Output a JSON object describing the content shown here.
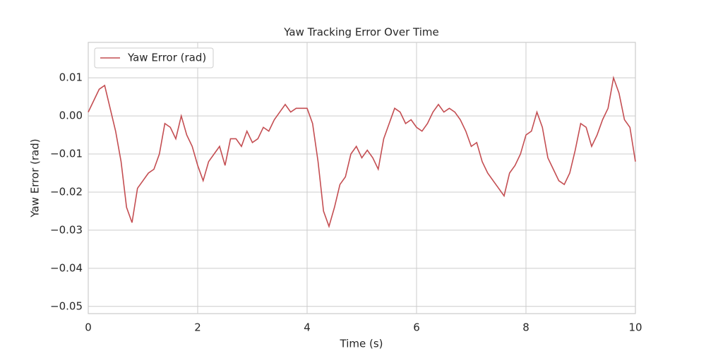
{
  "chart_data": {
    "type": "line",
    "title": "Yaw Tracking Error Over Time",
    "x_label": "Time (s)",
    "y_label": "Yaw Error (rad)",
    "x": [
      0,
      0.1,
      0.2,
      0.3,
      0.4,
      0.5,
      0.6,
      0.7,
      0.8,
      0.9,
      1,
      1.1,
      1.2,
      1.3,
      1.4,
      1.5,
      1.6,
      1.7,
      1.8,
      1.9,
      2,
      2.1,
      2.2,
      2.3,
      2.4,
      2.5,
      2.6,
      2.7,
      2.8,
      2.9,
      3,
      3.1,
      3.2,
      3.3,
      3.4,
      3.5,
      3.6,
      3.7,
      3.8,
      3.9,
      4,
      4.1,
      4.2,
      4.3,
      4.4,
      4.5,
      4.6,
      4.7,
      4.8,
      4.9,
      5,
      5.1,
      5.2,
      5.3,
      5.4,
      5.5,
      5.6,
      5.7,
      5.8,
      5.9,
      6,
      6.1,
      6.2,
      6.3,
      6.4,
      6.5,
      6.6,
      6.7,
      6.8,
      6.9,
      7,
      7.1,
      7.2,
      7.3,
      7.4,
      7.5,
      7.6,
      7.7,
      7.8,
      7.9,
      8,
      8.1,
      8.2,
      8.3,
      8.4,
      8.5,
      8.6,
      8.7,
      8.8,
      8.9,
      9,
      9.1,
      9.2,
      9.3,
      9.4,
      9.5,
      9.6,
      9.7,
      9.8,
      9.9,
      10
    ],
    "series": [
      {
        "name": "Yaw Error (rad)",
        "color": "#c44e52",
        "values": [
          0.001,
          0.004,
          0.007,
          0.008,
          0.002,
          -0.004,
          -0.012,
          -0.024,
          -0.028,
          -0.019,
          -0.017,
          -0.015,
          -0.014,
          -0.01,
          -0.002,
          -0.003,
          -0.006,
          0.0,
          -0.005,
          -0.008,
          -0.013,
          -0.017,
          -0.012,
          -0.01,
          -0.008,
          -0.013,
          -0.006,
          -0.006,
          -0.008,
          -0.004,
          -0.007,
          -0.006,
          -0.003,
          -0.004,
          -0.001,
          0.001,
          0.003,
          0.001,
          0.002,
          0.002,
          0.002,
          -0.002,
          -0.012,
          -0.025,
          -0.029,
          -0.024,
          -0.018,
          -0.016,
          -0.01,
          -0.008,
          -0.011,
          -0.009,
          -0.011,
          -0.014,
          -0.006,
          -0.002,
          0.002,
          0.001,
          -0.002,
          -0.001,
          -0.003,
          -0.004,
          -0.002,
          0.001,
          0.003,
          0.001,
          0.002,
          0.001,
          -0.001,
          -0.004,
          -0.008,
          -0.007,
          -0.012,
          -0.015,
          -0.017,
          -0.019,
          -0.021,
          -0.015,
          -0.013,
          -0.01,
          -0.005,
          -0.004,
          0.001,
          -0.003,
          -0.011,
          -0.014,
          -0.017,
          -0.018,
          -0.015,
          -0.009,
          -0.002,
          -0.003,
          -0.008,
          -0.005,
          -0.001,
          0.002,
          0.01,
          0.006,
          -0.001,
          -0.003,
          -0.012
        ]
      }
    ],
    "xlim": [
      0,
      10
    ],
    "xticks": [
      0,
      2,
      4,
      6,
      8,
      10
    ],
    "ylim": [
      -0.0519,
      0.0193
    ],
    "yticks": [
      {
        "value": -0.05,
        "label": "−0.05"
      },
      {
        "value": -0.04,
        "label": "−0.04"
      },
      {
        "value": -0.03,
        "label": "−0.03"
      },
      {
        "value": -0.02,
        "label": "−0.02"
      },
      {
        "value": -0.01,
        "label": "−0.01"
      },
      {
        "value": 0,
        "label": "0.00"
      },
      0.01
    ],
    "grid": true,
    "legend": "upper left"
  }
}
